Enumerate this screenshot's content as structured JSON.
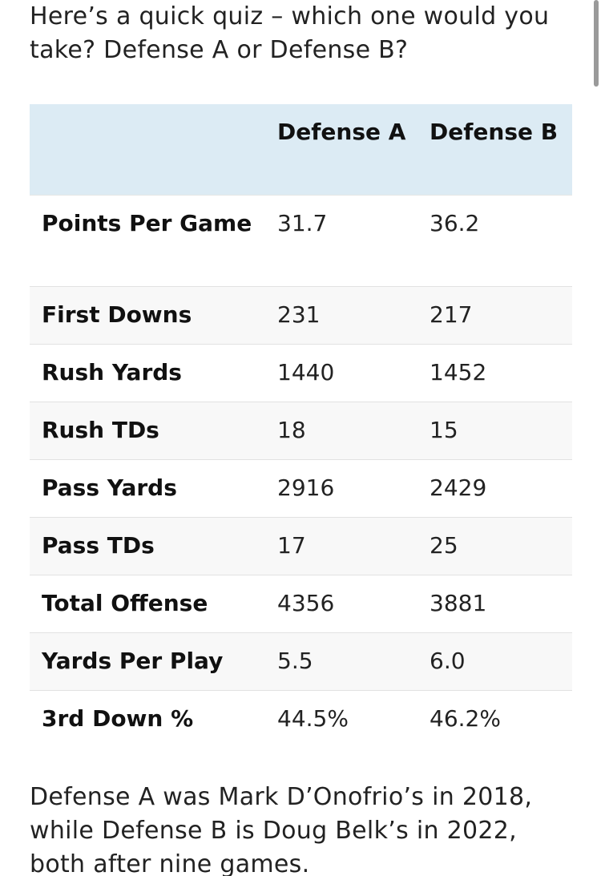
{
  "intro_text": "Here’s a quick quiz – which one would you take? Defense A or Defense B?",
  "table": {
    "columns": [
      "",
      "Defense A",
      "Defense B"
    ],
    "rows": [
      {
        "label": "Points Per Game",
        "a": "31.7",
        "b": "36.2"
      },
      {
        "label": "First Downs",
        "a": "231",
        "b": "217"
      },
      {
        "label": "Rush Yards",
        "a": "1440",
        "b": "1452"
      },
      {
        "label": "Rush TDs",
        "a": "18",
        "b": "15"
      },
      {
        "label": "Pass Yards",
        "a": "2916",
        "b": "2429"
      },
      {
        "label": "Pass TDs",
        "a": "17",
        "b": "25"
      },
      {
        "label": "Total Offense",
        "a": "4356",
        "b": "3881"
      },
      {
        "label": "Yards Per Play",
        "a": "5.5",
        "b": "6.0"
      },
      {
        "label": "3rd Down %",
        "a": "44.5%",
        "b": "46.2%"
      }
    ]
  },
  "outro_text": "Defense A was Mark D’Onofrio’s in 2018, while Defense B is Doug Belk’s in 2022, both after nine games.",
  "colors": {
    "header_background": "#dcebf4",
    "stripe_background": "#f8f8f8",
    "text": "#222222"
  }
}
